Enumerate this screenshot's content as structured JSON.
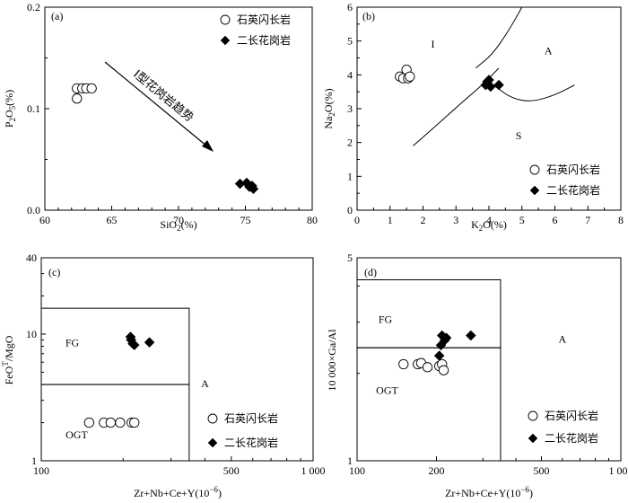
{
  "chart_data": [
    {
      "panel": "(a)",
      "type": "scatter",
      "xlabel": "SiO2(%)",
      "ylabel": "P2O5(%)",
      "xlim": [
        60,
        80
      ],
      "ylim": [
        0.0,
        0.2
      ],
      "x_ticks": [
        "60",
        "65",
        "70",
        "75",
        "80"
      ],
      "y_ticks": [
        "0.0",
        "0.1",
        "0.2"
      ],
      "series": [
        {
          "name": "石英闪长岩",
          "marker": "open-circle",
          "points": [
            [
              62.4,
              0.11
            ],
            [
              62.4,
              0.12
            ],
            [
              62.8,
              0.12
            ],
            [
              63.1,
              0.12
            ],
            [
              63.5,
              0.12
            ]
          ]
        },
        {
          "name": "二长花岗岩",
          "marker": "filled-diamond",
          "points": [
            [
              74.6,
              0.026
            ],
            [
              75.1,
              0.027
            ],
            [
              75.3,
              0.023
            ],
            [
              75.5,
              0.024
            ],
            [
              75.6,
              0.021
            ]
          ]
        }
      ],
      "annotations": [
        {
          "text": "I型花岗岩趋势",
          "arrow_from": [
            64.5,
            0.147
          ],
          "arrow_to": [
            72.8,
            0.059
          ]
        }
      ],
      "legend": "top-right"
    },
    {
      "panel": "(b)",
      "type": "scatter",
      "xlabel": "K2O(%)",
      "ylabel": "Na2O(%)",
      "xlim": [
        0,
        8
      ],
      "ylim": [
        0,
        6
      ],
      "x_ticks": [
        "0",
        "1",
        "2",
        "3",
        "4",
        "5",
        "6",
        "7",
        "8"
      ],
      "y_ticks": [
        "0",
        "1",
        "2",
        "3",
        "4",
        "5",
        "6"
      ],
      "series": [
        {
          "name": "石英闪长岩",
          "marker": "open-circle",
          "points": [
            [
              1.3,
              3.95
            ],
            [
              1.4,
              3.9
            ],
            [
              1.5,
              4.15
            ],
            [
              1.55,
              3.9
            ],
            [
              1.6,
              3.95
            ]
          ]
        },
        {
          "name": "二长花岗岩",
          "marker": "filled-diamond",
          "points": [
            [
              3.9,
              3.7
            ],
            [
              3.95,
              3.8
            ],
            [
              4.0,
              3.85
            ],
            [
              4.05,
              3.65
            ],
            [
              4.3,
              3.7
            ]
          ]
        }
      ],
      "boundaries": [
        [
          [
            1.7,
            1.9
          ],
          [
            2.4,
            2.5
          ],
          [
            3.2,
            3.2
          ],
          [
            3.8,
            3.7
          ],
          [
            4.3,
            4.2
          ]
        ],
        [
          [
            3.6,
            4.2
          ],
          [
            4.1,
            4.6
          ],
          [
            4.6,
            5.3
          ],
          [
            5.0,
            6.0
          ]
        ],
        [
          [
            4.2,
            3.65
          ],
          [
            4.7,
            3.3
          ],
          [
            5.3,
            3.2
          ],
          [
            6.0,
            3.4
          ],
          [
            6.6,
            3.7
          ]
        ]
      ],
      "regions": [
        {
          "label": "I",
          "at": [
            2.3,
            4.8
          ]
        },
        {
          "label": "A",
          "at": [
            5.8,
            4.6
          ]
        },
        {
          "label": "S",
          "at": [
            4.9,
            2.1
          ]
        }
      ],
      "legend": "bottom-right"
    },
    {
      "panel": "(c)",
      "type": "scatter",
      "xlabel": "Zr+Nb+Ce+Y(10^-6)",
      "ylabel": "FeOT/MgO",
      "xscale": "log",
      "yscale": "log",
      "xlim": [
        100,
        1000
      ],
      "ylim": [
        1,
        40
      ],
      "x_ticks": [
        "100",
        "500",
        "1 000"
      ],
      "y_ticks": [
        "1",
        "10",
        "40"
      ],
      "series": [
        {
          "name": "石英闪长岩",
          "marker": "open-circle",
          "points": [
            [
              150,
              2.0
            ],
            [
              170,
              2.0
            ],
            [
              180,
              2.0
            ],
            [
              195,
              2.0
            ],
            [
              215,
              2.0
            ],
            [
              220,
              2.0
            ]
          ]
        },
        {
          "name": "二长花岗岩",
          "marker": "filled-diamond",
          "points": [
            [
              213,
              9.5
            ],
            [
              214,
              9.0
            ],
            [
              217,
              8.4
            ],
            [
              220,
              8.2
            ],
            [
              250,
              8.6
            ]
          ]
        }
      ],
      "fields": [
        {
          "label": "FG",
          "box_x": [
            100,
            350
          ],
          "box_y": [
            4,
            16
          ]
        },
        {
          "label": "OGT",
          "box_x": [
            100,
            350
          ],
          "box_y": [
            1,
            4
          ]
        }
      ],
      "regions": [
        {
          "label": "FG",
          "at": [
            130,
            8.0
          ]
        },
        {
          "label": "OGT",
          "at": [
            135,
            1.5
          ]
        },
        {
          "label": "A",
          "at": [
            400,
            3.8
          ]
        }
      ],
      "legend": "bottom-right"
    },
    {
      "panel": "(d)",
      "type": "scatter",
      "xlabel": "Zr+Nb+Ce+Y(10^-6)",
      "ylabel": "10 000×Ga/Al",
      "xscale": "log",
      "yscale": "log",
      "xlim": [
        100,
        1000
      ],
      "ylim": [
        1,
        5
      ],
      "x_ticks": [
        "100",
        "200",
        "500",
        "1 000"
      ],
      "y_ticks": [
        "1",
        "5"
      ],
      "series": [
        {
          "name": "石英闪长岩",
          "marker": "open-circle",
          "points": [
            [
              150,
              2.15
            ],
            [
              170,
              2.15
            ],
            [
              175,
              2.17
            ],
            [
              185,
              2.1
            ],
            [
              205,
              2.12
            ],
            [
              210,
              2.15
            ],
            [
              213,
              2.05
            ]
          ]
        },
        {
          "name": "二长花岗岩",
          "marker": "filled-diamond",
          "points": [
            [
              205,
              2.3
            ],
            [
              208,
              2.5
            ],
            [
              210,
              2.7
            ],
            [
              215,
              2.6
            ],
            [
              218,
              2.65
            ],
            [
              270,
              2.7
            ]
          ]
        }
      ],
      "fields": [
        {
          "label": "FG",
          "box_x": [
            100,
            350
          ],
          "box_y": [
            2.45,
            4.2
          ]
        },
        {
          "label": "OGT",
          "box_x": [
            100,
            350
          ],
          "box_y": [
            1,
            2.45
          ]
        }
      ],
      "regions": [
        {
          "label": "FG",
          "at": [
            128,
            2.98
          ]
        },
        {
          "label": "OGT",
          "at": [
            130,
            1.7
          ]
        },
        {
          "label": "A",
          "at": [
            600,
            2.55
          ]
        }
      ],
      "legend": "bottom-right"
    }
  ],
  "labels": {
    "a": {
      "panel": "(a)",
      "xlabel_main": "SiO",
      "xlabel_sub": "2",
      "xlabel_tail": "(%)",
      "ylabel_main": "P",
      "ylabel_sub1": "2",
      "ylabel_mid": "O",
      "ylabel_sub2": "5",
      "ylabel_tail": "(%)",
      "annotation": "I型花岗岩趋势"
    },
    "b": {
      "panel": "(b)",
      "xlabel_main": "K",
      "xlabel_sub": "2",
      "xlabel_tail": "O(%)",
      "ylabel_main": "Na",
      "ylabel_sub": "2",
      "ylabel_tail": "O(%)"
    },
    "c": {
      "panel": "(c)",
      "xlabel": "Zr+Nb+Ce+Y(10",
      "xlabel_sup": "−6",
      "xlabel_tail": ")",
      "ylabel_main": "FeO",
      "ylabel_sup": "T",
      "ylabel_tail": "/MgO"
    },
    "d": {
      "panel": "(d)",
      "xlabel": "Zr+Nb+Ce+Y(10",
      "xlabel_sup": "−6",
      "xlabel_tail": ")",
      "ylabel": "10 000×Ga/Al"
    },
    "legend": {
      "s1": "石英闪长岩",
      "s2": "二长花岗岩"
    }
  }
}
